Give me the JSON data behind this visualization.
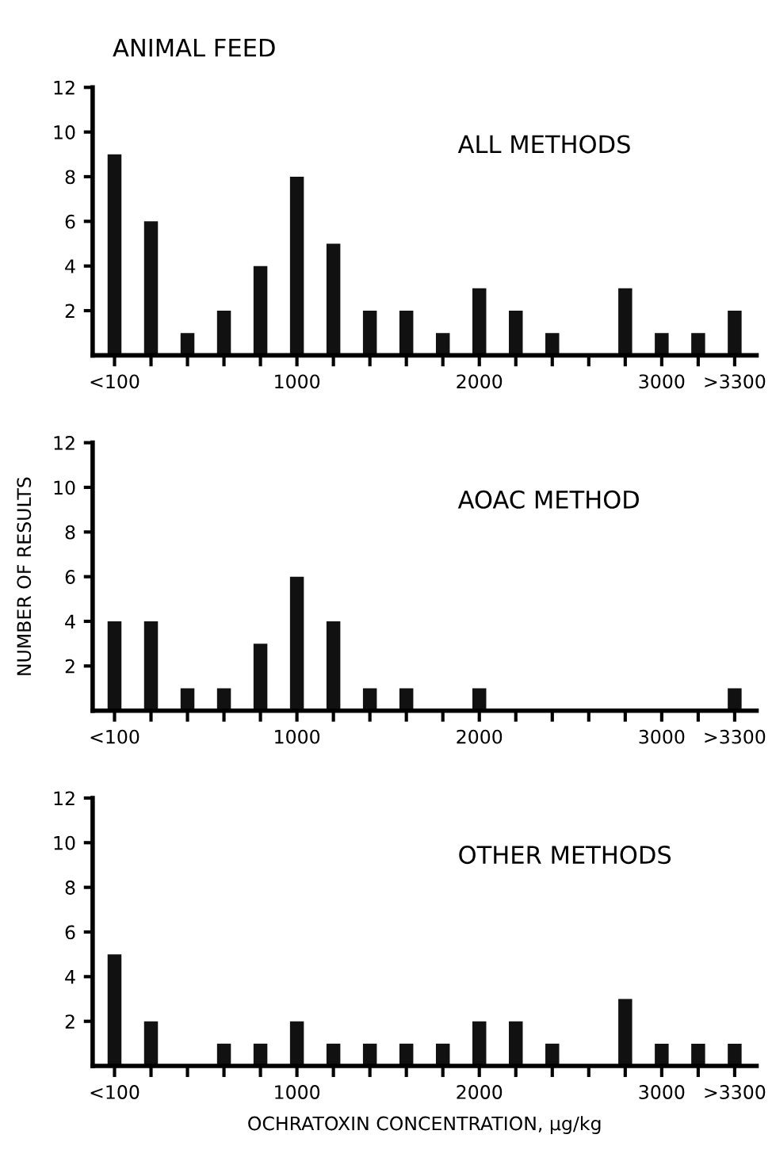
{
  "chart_data": [
    {
      "type": "bar",
      "title": "ANIMAL FEED",
      "annotations": [
        "ALL METHODS"
      ],
      "categories": [
        "<100",
        null,
        null,
        null,
        null,
        "1000",
        null,
        null,
        null,
        null,
        "2000",
        null,
        null,
        null,
        null,
        "3000",
        null,
        ">3300"
      ],
      "values": [
        9,
        6,
        1,
        2,
        4,
        8,
        5,
        2,
        2,
        1,
        3,
        2,
        1,
        0,
        3,
        1,
        1,
        2
      ],
      "color": "#111111",
      "ylim": [
        0,
        12
      ],
      "yticks": [
        2,
        4,
        6,
        8,
        10,
        12
      ],
      "grid": false,
      "legend": false
    },
    {
      "type": "bar",
      "ylabel": "NUMBER OF RESULTS",
      "annotations": [
        "AOAC METHOD"
      ],
      "categories": [
        "<100",
        null,
        null,
        null,
        null,
        "1000",
        null,
        null,
        null,
        null,
        "2000",
        null,
        null,
        null,
        null,
        "3000",
        null,
        ">3300"
      ],
      "values": [
        4,
        4,
        1,
        1,
        3,
        6,
        4,
        1,
        1,
        0,
        1,
        0,
        0,
        0,
        0,
        0,
        0,
        1
      ],
      "color": "#111111",
      "ylim": [
        0,
        12
      ],
      "yticks": [
        2,
        4,
        6,
        8,
        10,
        12
      ],
      "grid": false,
      "legend": false
    },
    {
      "type": "bar",
      "xlabel": "OCHRATOXIN CONCENTRATION, µg/kg",
      "annotations": [
        "OTHER METHODS"
      ],
      "categories": [
        "<100",
        null,
        null,
        null,
        null,
        "1000",
        null,
        null,
        null,
        null,
        "2000",
        null,
        null,
        null,
        null,
        "3000",
        null,
        ">3300"
      ],
      "values": [
        5,
        2,
        0,
        1,
        1,
        2,
        1,
        1,
        1,
        1,
        2,
        2,
        1,
        0,
        3,
        1,
        1,
        1
      ],
      "color": "#111111",
      "ylim": [
        0,
        12
      ],
      "yticks": [
        2,
        4,
        6,
        8,
        10,
        12
      ],
      "grid": false,
      "legend": false
    }
  ]
}
